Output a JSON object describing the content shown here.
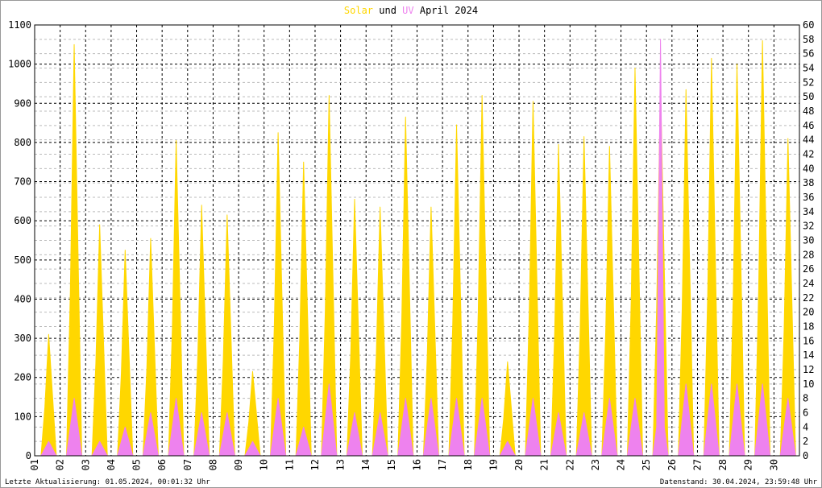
{
  "chart_data": {
    "type": "area",
    "title": "April 2024",
    "title_connector": "und",
    "footer_left": "Letzte Aktualisierung: 01.05.2024, 00:01:32 Uhr",
    "footer_right": "Datenstand: 30.04.2024, 23:59:48 Uhr",
    "x": [
      1.25,
      1.4,
      1.55,
      1.7,
      1.85,
      2.25,
      2.4,
      2.55,
      2.7,
      2.85,
      3.25,
      3.4,
      3.55,
      3.7,
      3.85,
      4.25,
      4.4,
      4.55,
      4.7,
      4.85,
      5.25,
      5.4,
      5.55,
      5.7,
      5.85,
      6.25,
      6.4,
      6.55,
      6.7,
      6.85,
      7.25,
      7.4,
      7.55,
      7.7,
      7.85,
      8.25,
      8.4,
      8.55,
      8.7,
      8.85,
      9.25,
      9.4,
      9.55,
      9.7,
      9.85,
      10.25,
      10.4,
      10.55,
      10.7,
      10.85,
      11.25,
      11.4,
      11.55,
      11.7,
      11.85,
      12.25,
      12.4,
      12.55,
      12.7,
      12.85,
      13.25,
      13.4,
      13.55,
      13.7,
      13.85,
      14.25,
      14.4,
      14.55,
      14.7,
      14.85,
      15.25,
      15.4,
      15.55,
      15.7,
      15.85,
      16.25,
      16.4,
      16.55,
      16.7,
      16.85,
      17.25,
      17.4,
      17.55,
      17.7,
      17.85,
      18.25,
      18.4,
      18.55,
      18.7,
      18.85,
      19.25,
      19.4,
      19.55,
      19.7,
      19.85,
      20.25,
      20.4,
      20.55,
      20.7,
      20.85,
      21.25,
      21.4,
      21.55,
      21.7,
      21.85,
      22.25,
      22.4,
      22.55,
      22.7,
      22.85,
      23.25,
      23.4,
      23.55,
      23.7,
      23.85,
      24.25,
      24.4,
      24.55,
      24.7,
      24.85,
      25.25,
      25.4,
      25.55,
      25.7,
      25.85,
      26.25,
      26.4,
      26.55,
      26.7,
      26.85,
      27.25,
      27.4,
      27.55,
      27.7,
      27.85,
      28.25,
      28.4,
      28.55,
      28.7,
      28.85,
      29.25,
      29.4,
      29.55,
      29.7,
      29.85,
      30.25,
      30.4,
      30.55,
      30.7,
      30.85
    ],
    "series": [
      {
        "name": "Solar",
        "color": "#ffd700",
        "values": [
          0,
          124,
          310,
          155,
          0,
          0,
          420,
          1050,
          525,
          0,
          0,
          236,
          590,
          295,
          0,
          0,
          210,
          525,
          262,
          0,
          0,
          222,
          555,
          278,
          0,
          0,
          322,
          805,
          402,
          0,
          0,
          256,
          640,
          320,
          0,
          0,
          246,
          615,
          308,
          0,
          0,
          86,
          215,
          108,
          0,
          0,
          330,
          825,
          412,
          0,
          0,
          300,
          750,
          375,
          0,
          0,
          368,
          920,
          460,
          0,
          0,
          262,
          655,
          328,
          0,
          0,
          254,
          635,
          318,
          0,
          0,
          346,
          865,
          432,
          0,
          0,
          254,
          635,
          318,
          0,
          0,
          338,
          845,
          422,
          0,
          0,
          368,
          920,
          460,
          0,
          0,
          96,
          240,
          120,
          0,
          0,
          362,
          905,
          452,
          0,
          0,
          318,
          795,
          398,
          0,
          0,
          326,
          815,
          408,
          0,
          0,
          316,
          790,
          395,
          0,
          0,
          396,
          990,
          495,
          0,
          0,
          380,
          950,
          475,
          0,
          0,
          374,
          935,
          468,
          0,
          0,
          406,
          1015,
          508,
          0,
          0,
          400,
          1000,
          500,
          0,
          0,
          424,
          1060,
          530,
          0,
          0,
          324,
          810,
          405,
          0
        ]
      },
      {
        "name": "UV",
        "color": "#ee82ee",
        "axis": "y2",
        "values": [
          0,
          1,
          2,
          1,
          0,
          0,
          4,
          8,
          4,
          0,
          0,
          1,
          2,
          1,
          0,
          0,
          2,
          4,
          2,
          0,
          0,
          3,
          6,
          3,
          0,
          0,
          4,
          8,
          4,
          0,
          0,
          3,
          6,
          3,
          0,
          0,
          3,
          6,
          3,
          0,
          0,
          1,
          2,
          1,
          0,
          0,
          4,
          8,
          4,
          0,
          0,
          2,
          4,
          2,
          0,
          0,
          5,
          10,
          5,
          0,
          0,
          3,
          6,
          3,
          0,
          0,
          3,
          6,
          3,
          0,
          0,
          4,
          8,
          4,
          0,
          0,
          4,
          8,
          4,
          0,
          0,
          4,
          8,
          4,
          0,
          0,
          4,
          8,
          4,
          0,
          0,
          1,
          2,
          1,
          0,
          0,
          4,
          8,
          4,
          0,
          0,
          3,
          6,
          3,
          0,
          0,
          3,
          6,
          3,
          0,
          0,
          4,
          8,
          4,
          0,
          0,
          4,
          8,
          4,
          0,
          0,
          4,
          58,
          4,
          0,
          0,
          5,
          10,
          5,
          0,
          0,
          5,
          10,
          5,
          0,
          0,
          5,
          10,
          5,
          0,
          0,
          5,
          10,
          5,
          0,
          0,
          4,
          8,
          4,
          0
        ]
      }
    ],
    "xlim": [
      1,
      31
    ],
    "xticks": [
      {
        "value": 1,
        "label": "01"
      },
      {
        "value": 2,
        "label": "02"
      },
      {
        "value": 3,
        "label": "03"
      },
      {
        "value": 4,
        "label": "04"
      },
      {
        "value": 5,
        "label": "05"
      },
      {
        "value": 6,
        "label": "06"
      },
      {
        "value": 7,
        "label": "07"
      },
      {
        "value": 8,
        "label": "08"
      },
      {
        "value": 9,
        "label": "09"
      },
      10,
      11,
      12,
      13,
      14,
      15,
      16,
      17,
      18,
      19,
      20,
      21,
      22,
      23,
      24,
      25,
      26,
      27,
      28,
      29,
      30
    ],
    "ylim": [
      0,
      1100
    ],
    "yticks": [
      0,
      100,
      200,
      300,
      400,
      500,
      600,
      700,
      800,
      900,
      1000,
      1100
    ],
    "y2lim": [
      0,
      60
    ],
    "y2ticks": [
      0,
      2,
      4,
      6,
      8,
      10,
      12,
      14,
      16,
      18,
      20,
      22,
      24,
      26,
      28,
      30,
      32,
      34,
      36,
      38,
      40,
      42,
      44,
      46,
      48,
      50,
      52,
      54,
      56,
      58,
      60
    ],
    "grid": true
  }
}
